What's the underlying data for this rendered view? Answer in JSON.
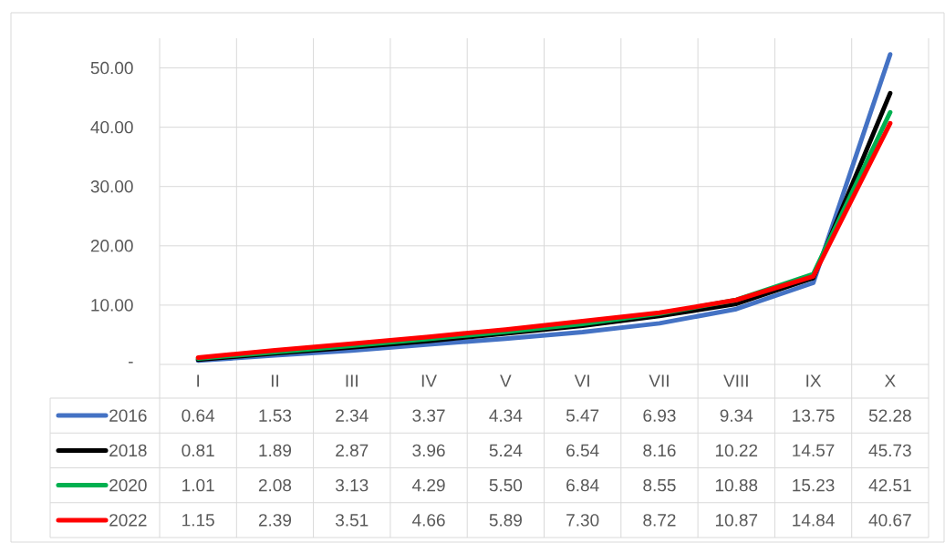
{
  "chart_data": {
    "type": "line",
    "categories": [
      "I",
      "II",
      "III",
      "IV",
      "V",
      "VI",
      "VII",
      "VIII",
      "IX",
      "X"
    ],
    "series": [
      {
        "name": "2016",
        "color": "#4472c4",
        "values": [
          0.64,
          1.53,
          2.34,
          3.37,
          4.34,
          5.47,
          6.93,
          9.34,
          13.75,
          52.28
        ],
        "value_labels": [
          "0.64",
          "1.53",
          "2.34",
          "3.37",
          "4.34",
          "5.47",
          "6.93",
          "9.34",
          "13.75",
          "52.28"
        ]
      },
      {
        "name": "2018",
        "color": "#000000",
        "values": [
          0.81,
          1.89,
          2.87,
          3.96,
          5.24,
          6.54,
          8.16,
          10.22,
          14.57,
          45.73
        ],
        "value_labels": [
          "0.81",
          "1.89",
          "2.87",
          "3.96",
          "5.24",
          "6.54",
          "8.16",
          "10.22",
          "14.57",
          "45.73"
        ]
      },
      {
        "name": "2020",
        "color": "#00b050",
        "values": [
          1.01,
          2.08,
          3.13,
          4.29,
          5.5,
          6.84,
          8.55,
          10.88,
          15.23,
          42.51
        ],
        "value_labels": [
          "1.01",
          "2.08",
          "3.13",
          "4.29",
          "5.50",
          "6.84",
          "8.55",
          "10.88",
          "15.23",
          "42.51"
        ]
      },
      {
        "name": "2022",
        "color": "#ff0000",
        "values": [
          1.15,
          2.39,
          3.51,
          4.66,
          5.89,
          7.3,
          8.72,
          10.87,
          14.84,
          40.67
        ],
        "value_labels": [
          "1.15",
          "2.39",
          "3.51",
          "4.66",
          "5.89",
          "7.30",
          "8.72",
          "10.87",
          "14.84",
          "40.67"
        ]
      }
    ],
    "ylim": [
      0,
      55
    ],
    "yticks": [
      {
        "value": 0,
        "label": "-"
      },
      {
        "value": 10,
        "label": "10.00"
      },
      {
        "value": 20,
        "label": "20.00"
      },
      {
        "value": 30,
        "label": "30.00"
      },
      {
        "value": 40,
        "label": "40.00"
      },
      {
        "value": 50,
        "label": "50.00"
      }
    ],
    "grid": true,
    "legend": "bottom"
  }
}
